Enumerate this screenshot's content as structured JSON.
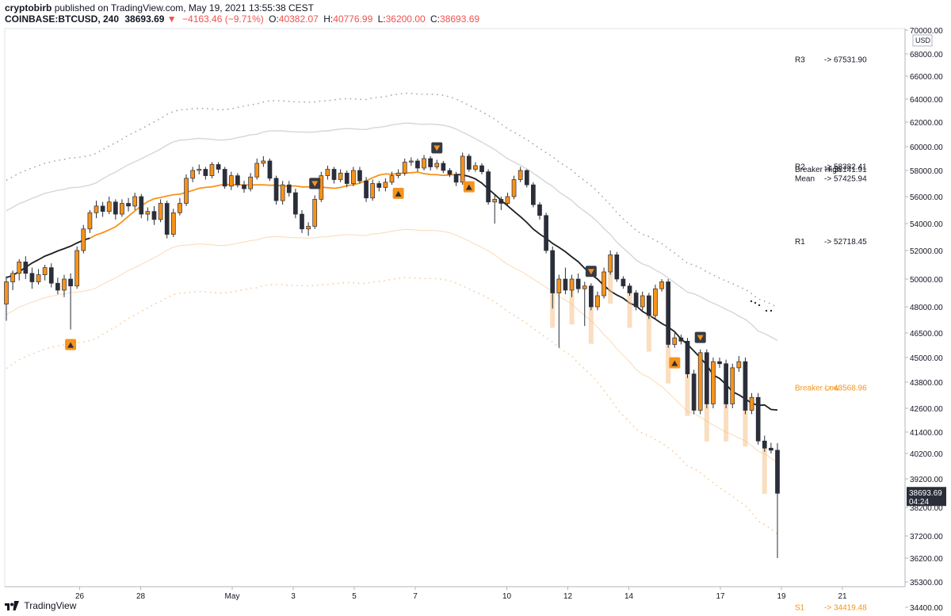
{
  "header": {
    "author": "cryptobirb",
    "published_text": "published on TradingView.com, May 19, 2021 13:55:38 CEST",
    "symbol": "COINBASE:BTCUSD, 240",
    "last_price": "38693.69",
    "change": "−4163.46 (−9.71%)",
    "o_label": "O:",
    "o_value": "40382.07",
    "h_label": "H:",
    "h_value": "40776.99",
    "l_label": "L:",
    "l_value": "36200.00",
    "c_label": "C:",
    "c_value": "38693.69"
  },
  "footer": {
    "brand": "TradingView"
  },
  "colors": {
    "up": "#f7931a",
    "down": "#2a2e39",
    "orange_line": "#f7931a",
    "black_line": "#1f1f1f",
    "band": "#bdbdbd",
    "band_orange": "#f6c28a",
    "marker": "#f7931a",
    "marker_dark": "#363a45",
    "fill": "#f6c28a",
    "price_tag": "#2a2e39"
  },
  "chart_data": {
    "type": "candlestick",
    "symbol": "COINBASE:BTCUSD",
    "interval": "240",
    "price_axis": {
      "currency": "USD",
      "ticks": [
        "70000.00",
        "68000.00",
        "66000.00",
        "64000.00",
        "62000.00",
        "60000.00",
        "58000.00",
        "56000.00",
        "54000.00",
        "52000.00",
        "50000.00",
        "48000.00",
        "46500.00",
        "45000.00",
        "43800.00",
        "42600.00",
        "41400.00",
        "40200.00",
        "39200.00",
        "38200.00",
        "37200.00",
        "36200.00",
        "35300.00",
        "34400.00"
      ],
      "ticks_numeric": [
        70000,
        68000,
        66000,
        64000,
        62000,
        60000,
        58000,
        56000,
        54000,
        52000,
        50000,
        48000,
        46500,
        45000,
        43800,
        42600,
        41400,
        40200,
        39200,
        38200,
        37200,
        36200,
        35300,
        34400
      ],
      "last_price_label": "38693.69",
      "countdown_label": "04:24"
    },
    "time_axis": {
      "labels": [
        "26",
        "28",
        "May",
        "3",
        "5",
        "7",
        "10",
        "12",
        "14",
        "17",
        "19",
        "21"
      ],
      "days": [
        -5,
        -3,
        0,
        2,
        4,
        6,
        9,
        11,
        13,
        16,
        18,
        20
      ]
    },
    "levels": [
      {
        "name": "R3",
        "value_text": "-> 67531.90",
        "value": 67531.9,
        "color": "#131722"
      },
      {
        "name": "R2",
        "value_text": "-> 58382.41",
        "value": 58382.41,
        "color": "#131722"
      },
      {
        "name": "Breaker High",
        "value_text": "-> 58141.91",
        "value": 58141.91,
        "color": "#131722"
      },
      {
        "name": "Mean",
        "value_text": "-> 57425.94",
        "value": 57425.94,
        "color": "#131722"
      },
      {
        "name": "R1",
        "value_text": "-> 52718.45",
        "value": 52718.45,
        "color": "#131722"
      },
      {
        "name": "Breaker Low",
        "value_text": "-> 43568.96",
        "value": 43568.96,
        "color": "#f7931a"
      },
      {
        "name": "S1",
        "value_text": "-> 34419.48",
        "value": 34419.48,
        "color": "#f7931a"
      }
    ],
    "candles_close_approx": [
      50000,
      50500,
      51200,
      50500,
      49800,
      50300,
      50800,
      49700,
      49200,
      50000,
      49500,
      52000,
      53600,
      54800,
      55300,
      54900,
      55600,
      54700,
      55500,
      55300,
      56000,
      54700,
      54900,
      54300,
      55500,
      53200,
      54800,
      55500,
      57400,
      58000,
      58100,
      57600,
      58500,
      58100,
      56800,
      57600,
      56900,
      56600,
      57500,
      58600,
      58800,
      57400,
      55700,
      56900,
      56300,
      54700,
      53600,
      53800,
      55800,
      57600,
      58100,
      57300,
      57800,
      57000,
      58000,
      57200,
      55900,
      57000,
      56700,
      57100,
      57600,
      57800,
      58700,
      58800,
      58200,
      59000,
      58300,
      58600,
      58000,
      57700,
      57100,
      59200,
      58100,
      58400,
      57900,
      55600,
      55800,
      55500,
      56000,
      57300,
      58000,
      56900,
      55400,
      54600,
      52000,
      49000,
      50000,
      49200,
      50000,
      49300,
      49500,
      48000,
      48800,
      50500,
      51700,
      50000,
      49500,
      49000,
      48000,
      48800,
      47500,
      49300,
      49800,
      45800,
      46200,
      46000,
      44200,
      42500,
      45300,
      42800,
      44800,
      44700,
      42800,
      44500,
      44800,
      42500,
      43100,
      40900,
      40500,
      40382,
      38693
    ],
    "candles": [
      {
        "o": 48200,
        "h": 50200,
        "l": 47200,
        "c": 49800
      },
      {
        "o": 49800,
        "h": 50600,
        "l": 49200,
        "c": 50400
      },
      {
        "o": 50400,
        "h": 51400,
        "l": 49900,
        "c": 51200
      },
      {
        "o": 51200,
        "h": 51600,
        "l": 50000,
        "c": 50400
      },
      {
        "o": 50400,
        "h": 50800,
        "l": 49300,
        "c": 49800
      },
      {
        "o": 49800,
        "h": 50700,
        "l": 49600,
        "c": 50300
      },
      {
        "o": 50300,
        "h": 51000,
        "l": 49900,
        "c": 50800
      },
      {
        "o": 50800,
        "h": 51100,
        "l": 49400,
        "c": 49700
      },
      {
        "o": 49700,
        "h": 50100,
        "l": 48900,
        "c": 49200
      },
      {
        "o": 49200,
        "h": 50300,
        "l": 48700,
        "c": 50000
      },
      {
        "o": 50000,
        "h": 50400,
        "l": 46700,
        "c": 49500
      },
      {
        "o": 49500,
        "h": 52300,
        "l": 49300,
        "c": 52000
      },
      {
        "o": 52000,
        "h": 53900,
        "l": 51800,
        "c": 53600
      },
      {
        "o": 53600,
        "h": 55000,
        "l": 53300,
        "c": 54800
      },
      {
        "o": 54800,
        "h": 55700,
        "l": 54400,
        "c": 55300
      },
      {
        "o": 55300,
        "h": 55600,
        "l": 54500,
        "c": 54900
      },
      {
        "o": 54900,
        "h": 56000,
        "l": 54700,
        "c": 55600
      },
      {
        "o": 55600,
        "h": 55800,
        "l": 54300,
        "c": 54700
      },
      {
        "o": 54700,
        "h": 55800,
        "l": 54500,
        "c": 55500
      },
      {
        "o": 55500,
        "h": 55900,
        "l": 54900,
        "c": 55300
      },
      {
        "o": 55300,
        "h": 56300,
        "l": 55000,
        "c": 56000
      },
      {
        "o": 56000,
        "h": 56200,
        "l": 54400,
        "c": 54700
      },
      {
        "o": 54700,
        "h": 55200,
        "l": 54200,
        "c": 54900
      },
      {
        "o": 54900,
        "h": 55300,
        "l": 53900,
        "c": 54300
      },
      {
        "o": 54300,
        "h": 55800,
        "l": 54100,
        "c": 55500
      },
      {
        "o": 55500,
        "h": 55700,
        "l": 52900,
        "c": 53200
      },
      {
        "o": 53200,
        "h": 55100,
        "l": 53000,
        "c": 54800
      },
      {
        "o": 54800,
        "h": 55900,
        "l": 54600,
        "c": 55500
      },
      {
        "o": 55500,
        "h": 57700,
        "l": 55300,
        "c": 57400
      },
      {
        "o": 57400,
        "h": 58300,
        "l": 57100,
        "c": 58000
      },
      {
        "o": 58000,
        "h": 58500,
        "l": 57700,
        "c": 58100
      },
      {
        "o": 58100,
        "h": 58300,
        "l": 57300,
        "c": 57600
      },
      {
        "o": 57600,
        "h": 58700,
        "l": 57400,
        "c": 58500
      },
      {
        "o": 58500,
        "h": 58700,
        "l": 57800,
        "c": 58100
      },
      {
        "o": 58100,
        "h": 58300,
        "l": 56600,
        "c": 56800
      },
      {
        "o": 56800,
        "h": 57900,
        "l": 56500,
        "c": 57600
      },
      {
        "o": 57600,
        "h": 57800,
        "l": 56700,
        "c": 56900
      },
      {
        "o": 56900,
        "h": 57200,
        "l": 56300,
        "c": 56600
      },
      {
        "o": 56600,
        "h": 57800,
        "l": 56400,
        "c": 57500
      },
      {
        "o": 57500,
        "h": 59000,
        "l": 57300,
        "c": 58600
      },
      {
        "o": 58600,
        "h": 59200,
        "l": 58300,
        "c": 58800
      },
      {
        "o": 58800,
        "h": 59000,
        "l": 57200,
        "c": 57400
      },
      {
        "o": 57400,
        "h": 57600,
        "l": 55400,
        "c": 55700
      },
      {
        "o": 55700,
        "h": 57200,
        "l": 55400,
        "c": 56900
      },
      {
        "o": 56900,
        "h": 57200,
        "l": 56000,
        "c": 56300
      },
      {
        "o": 56300,
        "h": 56600,
        "l": 54400,
        "c": 54700
      },
      {
        "o": 54700,
        "h": 55000,
        "l": 53300,
        "c": 53600
      },
      {
        "o": 53600,
        "h": 54100,
        "l": 53100,
        "c": 53800
      },
      {
        "o": 53800,
        "h": 56100,
        "l": 53600,
        "c": 55800
      },
      {
        "o": 55800,
        "h": 57900,
        "l": 55600,
        "c": 57600
      },
      {
        "o": 57600,
        "h": 58400,
        "l": 57300,
        "c": 58100
      },
      {
        "o": 58100,
        "h": 58300,
        "l": 57000,
        "c": 57300
      },
      {
        "o": 57300,
        "h": 58100,
        "l": 57100,
        "c": 57800
      },
      {
        "o": 57800,
        "h": 58000,
        "l": 56700,
        "c": 57000
      },
      {
        "o": 57000,
        "h": 58300,
        "l": 56800,
        "c": 58000
      },
      {
        "o": 58000,
        "h": 58300,
        "l": 57000,
        "c": 57200
      },
      {
        "o": 57200,
        "h": 57500,
        "l": 55600,
        "c": 55900
      },
      {
        "o": 55900,
        "h": 57300,
        "l": 55700,
        "c": 57000
      },
      {
        "o": 57000,
        "h": 57200,
        "l": 56400,
        "c": 56700
      },
      {
        "o": 56700,
        "h": 57400,
        "l": 56400,
        "c": 57100
      },
      {
        "o": 57100,
        "h": 57900,
        "l": 56900,
        "c": 57600
      },
      {
        "o": 57600,
        "h": 58100,
        "l": 57400,
        "c": 57800
      },
      {
        "o": 57800,
        "h": 59000,
        "l": 57600,
        "c": 58700
      },
      {
        "o": 58700,
        "h": 59100,
        "l": 58400,
        "c": 58800
      },
      {
        "o": 58800,
        "h": 59000,
        "l": 57900,
        "c": 58200
      },
      {
        "o": 58200,
        "h": 59300,
        "l": 58000,
        "c": 59000
      },
      {
        "o": 59000,
        "h": 59200,
        "l": 58000,
        "c": 58300
      },
      {
        "o": 58300,
        "h": 58900,
        "l": 58100,
        "c": 58600
      },
      {
        "o": 58600,
        "h": 58800,
        "l": 57800,
        "c": 58000
      },
      {
        "o": 58000,
        "h": 58200,
        "l": 57500,
        "c": 57700
      },
      {
        "o": 57700,
        "h": 57900,
        "l": 56800,
        "c": 57100
      },
      {
        "o": 57100,
        "h": 59500,
        "l": 56900,
        "c": 59200
      },
      {
        "o": 59200,
        "h": 59400,
        "l": 57900,
        "c": 58100
      },
      {
        "o": 58100,
        "h": 58700,
        "l": 57900,
        "c": 58400
      },
      {
        "o": 58400,
        "h": 58600,
        "l": 57700,
        "c": 57900
      },
      {
        "o": 57900,
        "h": 58100,
        "l": 55400,
        "c": 55600
      },
      {
        "o": 55600,
        "h": 56100,
        "l": 54000,
        "c": 55800
      },
      {
        "o": 55800,
        "h": 56000,
        "l": 55000,
        "c": 55500
      },
      {
        "o": 55500,
        "h": 56300,
        "l": 55300,
        "c": 56000
      },
      {
        "o": 56000,
        "h": 57600,
        "l": 55800,
        "c": 57300
      },
      {
        "o": 57300,
        "h": 58300,
        "l": 57100,
        "c": 58000
      },
      {
        "o": 58000,
        "h": 58100,
        "l": 56700,
        "c": 56900
      },
      {
        "o": 56900,
        "h": 57100,
        "l": 55200,
        "c": 55400
      },
      {
        "o": 55400,
        "h": 55600,
        "l": 54300,
        "c": 54600
      },
      {
        "o": 54600,
        "h": 54800,
        "l": 51800,
        "c": 52000
      },
      {
        "o": 52000,
        "h": 52300,
        "l": 47900,
        "c": 49000
      },
      {
        "o": 49000,
        "h": 50300,
        "l": 45600,
        "c": 50000
      },
      {
        "o": 50000,
        "h": 50800,
        "l": 48900,
        "c": 49200
      },
      {
        "o": 49200,
        "h": 50300,
        "l": 48700,
        "c": 50000
      },
      {
        "o": 50000,
        "h": 50400,
        "l": 49000,
        "c": 49300
      },
      {
        "o": 49300,
        "h": 49800,
        "l": 46900,
        "c": 49500
      },
      {
        "o": 49500,
        "h": 49700,
        "l": 47800,
        "c": 48000
      },
      {
        "o": 48000,
        "h": 49100,
        "l": 47800,
        "c": 48800
      },
      {
        "o": 48800,
        "h": 50800,
        "l": 48600,
        "c": 50500
      },
      {
        "o": 50500,
        "h": 52000,
        "l": 50300,
        "c": 51700
      },
      {
        "o": 51700,
        "h": 51900,
        "l": 49800,
        "c": 50000
      },
      {
        "o": 50000,
        "h": 50200,
        "l": 49300,
        "c": 49500
      },
      {
        "o": 49500,
        "h": 49700,
        "l": 48800,
        "c": 49000
      },
      {
        "o": 49000,
        "h": 49200,
        "l": 47800,
        "c": 48000
      },
      {
        "o": 48000,
        "h": 49100,
        "l": 47800,
        "c": 48800
      },
      {
        "o": 48800,
        "h": 49000,
        "l": 47300,
        "c": 47500
      },
      {
        "o": 47500,
        "h": 49600,
        "l": 47300,
        "c": 49300
      },
      {
        "o": 49300,
        "h": 50000,
        "l": 49100,
        "c": 49800
      },
      {
        "o": 49800,
        "h": 50000,
        "l": 45600,
        "c": 45800
      },
      {
        "o": 45800,
        "h": 46500,
        "l": 45600,
        "c": 46200
      },
      {
        "o": 46200,
        "h": 46400,
        "l": 45800,
        "c": 46000
      },
      {
        "o": 46000,
        "h": 46200,
        "l": 44000,
        "c": 44200
      },
      {
        "o": 44200,
        "h": 44400,
        "l": 42300,
        "c": 42500
      },
      {
        "o": 42500,
        "h": 45500,
        "l": 42300,
        "c": 45300
      },
      {
        "o": 45300,
        "h": 45500,
        "l": 42600,
        "c": 42800
      },
      {
        "o": 42800,
        "h": 45000,
        "l": 42600,
        "c": 44800
      },
      {
        "o": 44800,
        "h": 45000,
        "l": 44500,
        "c": 44700
      },
      {
        "o": 44700,
        "h": 44900,
        "l": 42600,
        "c": 42800
      },
      {
        "o": 42800,
        "h": 44700,
        "l": 42600,
        "c": 44500
      },
      {
        "o": 44500,
        "h": 45100,
        "l": 44300,
        "c": 44800
      },
      {
        "o": 44800,
        "h": 45000,
        "l": 42300,
        "c": 42500
      },
      {
        "o": 42500,
        "h": 43300,
        "l": 42300,
        "c": 43100
      },
      {
        "o": 43100,
        "h": 43300,
        "l": 40700,
        "c": 40900
      },
      {
        "o": 40900,
        "h": 41200,
        "l": 40300,
        "c": 40500
      },
      {
        "o": 40500,
        "h": 40800,
        "l": 40200,
        "c": 40382
      },
      {
        "o": 40382.07,
        "h": 40776.99,
        "l": 36200,
        "c": 38693.69
      }
    ],
    "markers": [
      {
        "type": "up",
        "index": 10
      },
      {
        "type": "down",
        "index": 48
      },
      {
        "type": "up",
        "index": 61
      },
      {
        "type": "down",
        "index": 67
      },
      {
        "type": "up",
        "index": 72
      },
      {
        "type": "down",
        "index": 91
      },
      {
        "type": "up",
        "index": 104
      },
      {
        "type": "down",
        "index": 108
      }
    ]
  }
}
